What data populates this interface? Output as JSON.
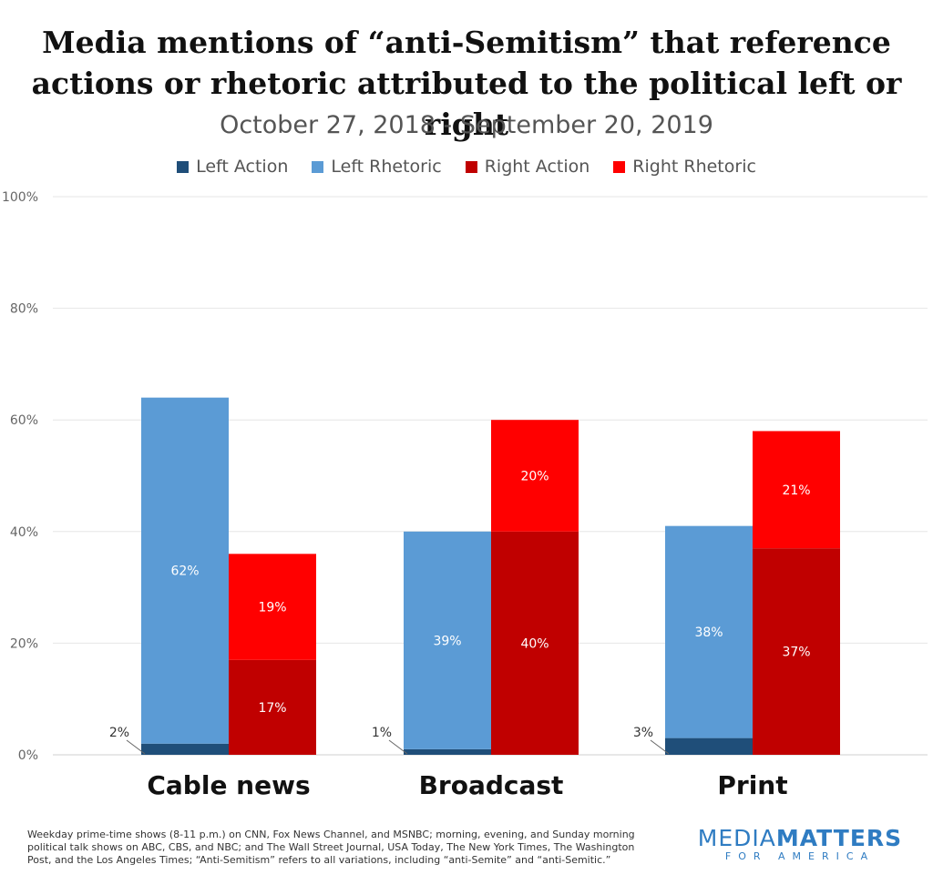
{
  "chart_data": {
    "type": "bar",
    "title": "Media mentions of “anti-Semitism” that reference actions or rhetoric attributed to the political left or right",
    "subtitle": "October 27, 2018 - September 20, 2019",
    "categories": [
      "Cable news",
      "Broadcast",
      "Print"
    ],
    "stacked_groups": [
      {
        "group": "Left",
        "series": [
          "Left Action",
          "Left Rhetoric"
        ]
      },
      {
        "group": "Right",
        "series": [
          "Right Action",
          "Right Rhetoric"
        ]
      }
    ],
    "series": [
      {
        "name": "Left Action",
        "color": "#1f4e79",
        "values": [
          2,
          1,
          3
        ],
        "labels": [
          "2%",
          "1%",
          "3%"
        ]
      },
      {
        "name": "Left Rhetoric",
        "color": "#5b9bd5",
        "values": [
          62,
          39,
          38
        ],
        "labels": [
          "62%",
          "39%",
          "38%"
        ]
      },
      {
        "name": "Right Action",
        "color": "#c00000",
        "values": [
          17,
          40,
          37
        ],
        "labels": [
          "17%",
          "40%",
          "37%"
        ]
      },
      {
        "name": "Right Rhetoric",
        "color": "#ff0000",
        "values": [
          19,
          20,
          21
        ],
        "labels": [
          "19%",
          "20%",
          "21%"
        ]
      }
    ],
    "y_ticks": [
      "0%",
      "20%",
      "40%",
      "60%",
      "80%",
      "100%"
    ],
    "ylim": [
      0,
      100
    ],
    "grid": true,
    "legend_position": "top-center"
  },
  "footnote": "Weekday prime-time shows (8-11 p.m.) on CNN, Fox News Channel, and MSNBC; morning, evening, and Sunday morning political talk shows on ABC, CBS, and NBC; and The Wall Street Journal, USA Today, The New York Times, The Washington Post, and the Los Angeles Times; “Anti-Semitism” refers to all variations, including “anti-Semite” and “anti-Semitic.”",
  "logo": {
    "part1": "MEDIA",
    "part2": "MATTERS",
    "sub": "FOR AMERICA"
  }
}
